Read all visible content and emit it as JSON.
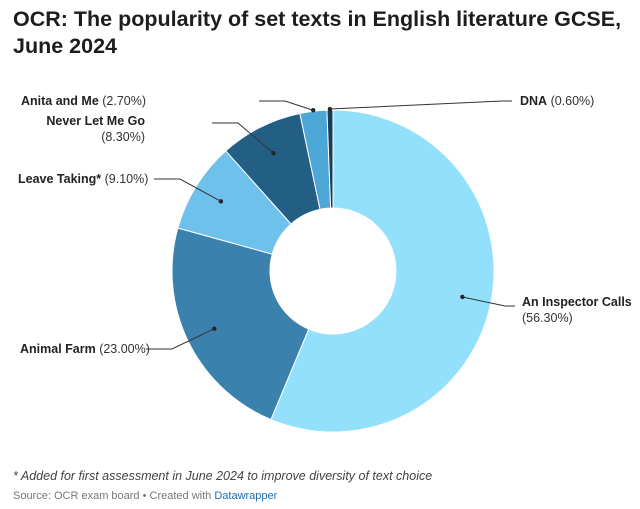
{
  "title": "OCR: The popularity of set texts in English literature GCSE, June 2024",
  "footnote": "* Added for first assessment in June 2024 to improve diversity of text choice",
  "source": {
    "prefix": "Source: OCR exam board • Created with ",
    "link_text": "Datawrapper"
  },
  "chart_data": {
    "type": "pie",
    "title": "OCR: The popularity of set texts in English literature GCSE, June 2024",
    "donut": true,
    "slices": [
      {
        "name": "An Inspector Calls",
        "value": 56.3,
        "value_label": "(56.30%)",
        "color": "#92e0fb"
      },
      {
        "name": "Animal Farm",
        "value": 23.0,
        "value_label": "(23.00%)",
        "color": "#3a82ad"
      },
      {
        "name": "Leave Taking*",
        "value": 9.1,
        "value_label": "(9.10%)",
        "color": "#6ec1ea"
      },
      {
        "name": "Never Let Me Go",
        "value": 8.3,
        "value_label": "(8.30%)",
        "color": "#235f85"
      },
      {
        "name": "Anita and Me",
        "value": 2.7,
        "value_label": "(2.70%)",
        "color": "#4ca7d6"
      },
      {
        "name": "DNA",
        "value": 0.6,
        "value_label": "(0.60%)",
        "color": "#173d58"
      }
    ]
  }
}
